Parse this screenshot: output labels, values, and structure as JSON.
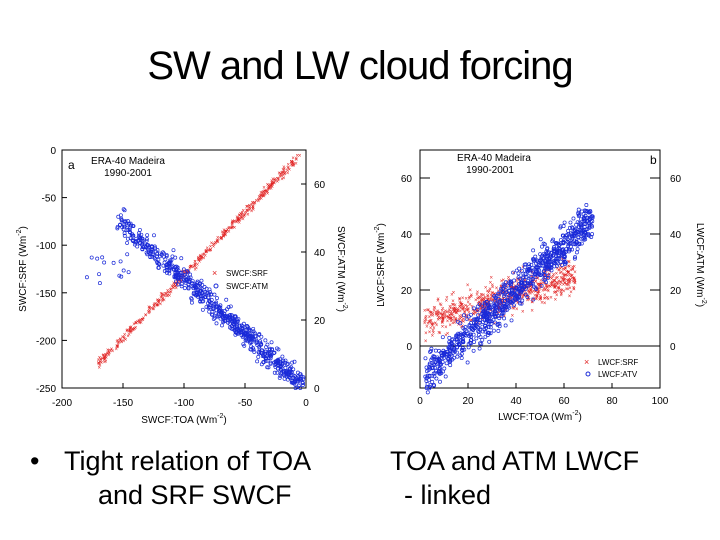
{
  "slide": {
    "title": "SW and LW cloud forcing",
    "bullet_left": "Tight relation of TOA and SRF SWCF",
    "bullet_left_marker": "•",
    "bullet_right_line1": "TOA and ATM LWCF",
    "bullet_right_line2": "- linked"
  },
  "chart_data": [
    {
      "type": "scatter",
      "panel": "a",
      "annotation": [
        "ERA-40 Madeira",
        "1990-2001"
      ],
      "xlabel": "SWCF:TOA (Wm",
      "xlabel_sup": "-2",
      "ylabel": "SWCF:SRF (Wm",
      "ylabel_sup": "-2",
      "y2label": "SWCF:ATM (Wm",
      "y2label_sup": "-2",
      "xlim": [
        -200,
        0
      ],
      "ylim": [
        -250,
        0
      ],
      "y2lim": [
        0,
        70
      ],
      "xticks": [
        -200,
        -150,
        -100,
        -50,
        0
      ],
      "yticks": [
        0,
        -50,
        -100,
        -150,
        -200,
        -250
      ],
      "y2ticks": [
        0,
        20,
        40,
        60
      ],
      "grid": false,
      "legend_position": "center-right",
      "series": [
        {
          "name": "SWCF:SRF",
          "marker": "x",
          "color": "#e02020",
          "axis": "y",
          "relation": "SRF ≈ 1.32 × TOA",
          "x_range": [
            -170,
            -5
          ]
        },
        {
          "name": "SWCF:ATM",
          "marker": "o",
          "color": "#1a2ad8",
          "axis": "y2",
          "relation": "ATM ≈ -0.32 × TOA",
          "x_range": [
            -155,
            -2
          ]
        }
      ]
    },
    {
      "type": "scatter",
      "panel": "b",
      "annotation": [
        "ERA-40 Madeira",
        "1990-2001"
      ],
      "xlabel": "LWCF:TOA (Wm",
      "xlabel_sup": "-2",
      "ylabel": "LWCF:SRF (Wm",
      "ylabel_sup": "-2",
      "y2label": "LWCF:ATM (Wm",
      "y2label_sup": "-2",
      "xlim": [
        0,
        100
      ],
      "ylim": [
        -15,
        70
      ],
      "y2lim": [
        -15,
        70
      ],
      "xticks": [
        0,
        20,
        40,
        60,
        80,
        100
      ],
      "yticks": [
        0,
        20,
        40,
        60
      ],
      "y2ticks": [
        0,
        20,
        40,
        60
      ],
      "grid": false,
      "legend_position": "bottom-right",
      "series": [
        {
          "name": "LWCF:SRF",
          "marker": "x",
          "color": "#e02020",
          "axis": "y",
          "relation": "SRF ≈ 8 + 0.27 × TOA",
          "x_range": [
            2,
            65
          ]
        },
        {
          "name": "LWCF:ATV",
          "marker": "o",
          "color": "#1a2ad8",
          "axis": "y2",
          "relation": "ATM ≈ -12 + 0.8 × TOA",
          "x_range": [
            2,
            72
          ]
        }
      ]
    }
  ]
}
